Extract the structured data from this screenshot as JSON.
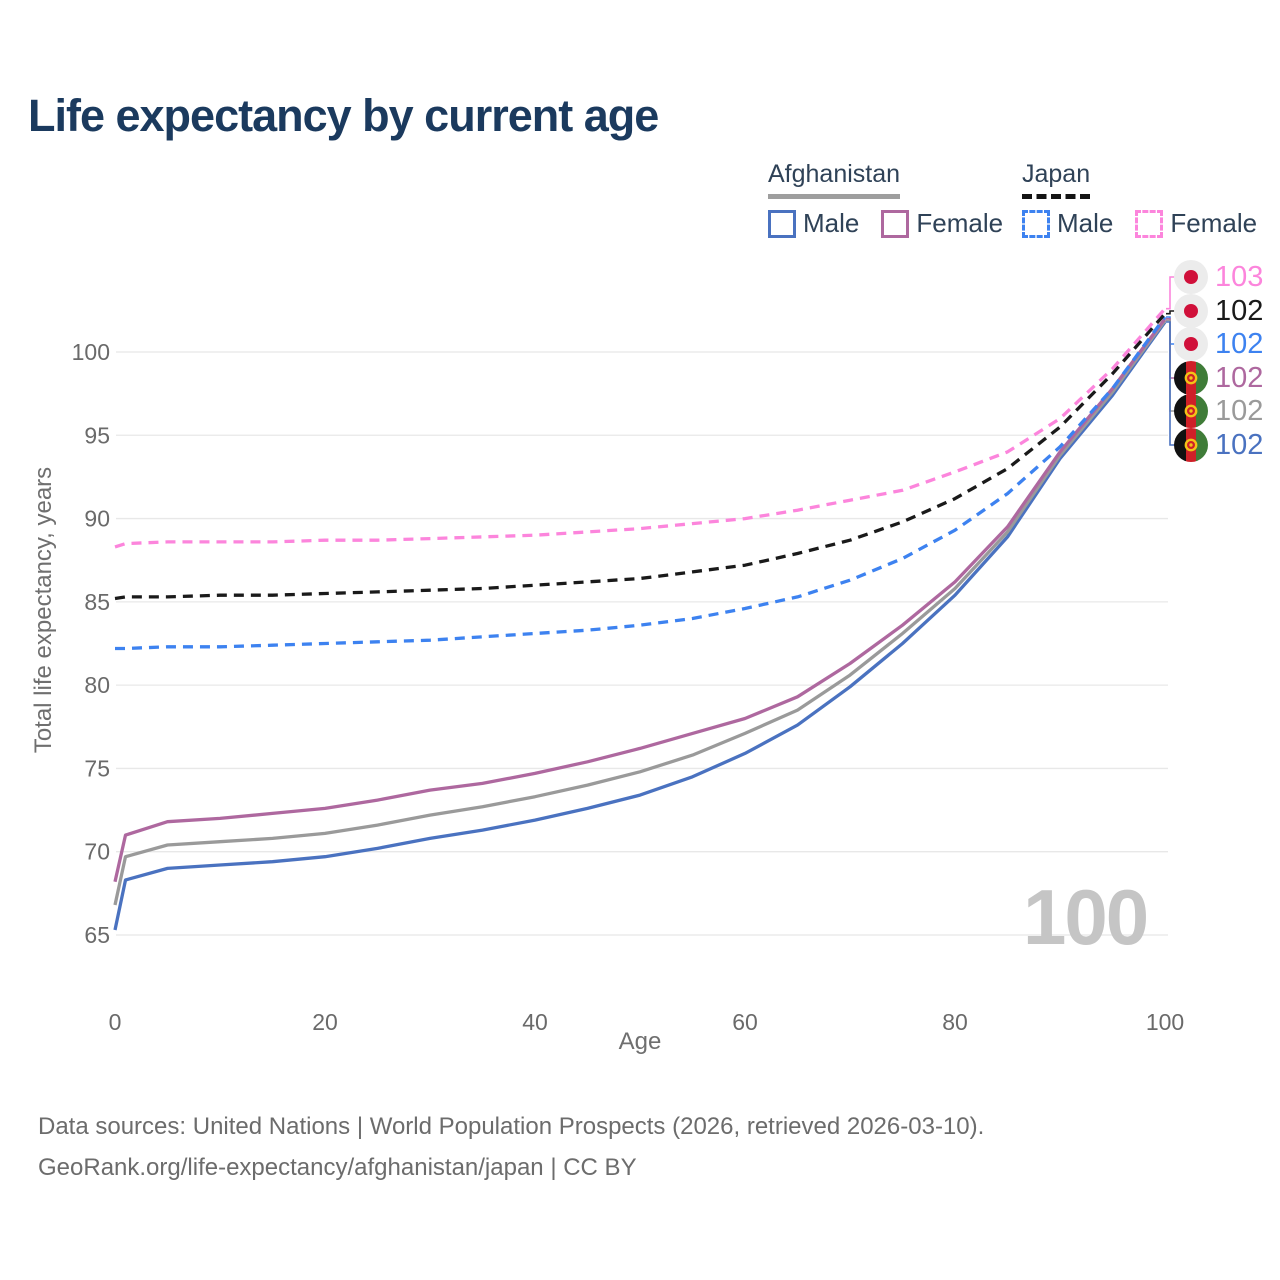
{
  "title": "Life expectancy by current age",
  "age_counter": "100",
  "colors": {
    "title": "#1b3a5e",
    "legend_text": "#2f4257",
    "axis_text": "#6a6a6a",
    "grid": "#e8e8e8",
    "watermark": "#c5c5c5",
    "footer_text": "#6c6c6c",
    "afghanistan_underline": "#9e9e9e",
    "japan_underline": "#141414"
  },
  "legend": {
    "groups": [
      {
        "country": "Afghanistan",
        "line_style": "solid",
        "underline_color": "#9e9e9e",
        "items": [
          {
            "label": "Male",
            "color": "#4a72c0",
            "dashed": false
          },
          {
            "label": "Female",
            "color": "#ae689f",
            "dashed": false
          }
        ]
      },
      {
        "country": "Japan",
        "line_style": "dashed",
        "underline_color": "#141414",
        "items": [
          {
            "label": "Male",
            "color": "#3d82f0",
            "dashed": true
          },
          {
            "label": "Female",
            "color": "#fc85dc",
            "dashed": true
          }
        ]
      }
    ]
  },
  "chart_data": {
    "type": "line",
    "title": "Life expectancy by current age",
    "xlabel": "Age",
    "ylabel": "Total life expectancy, years",
    "x_ticks": [
      0,
      20,
      40,
      60,
      80,
      100
    ],
    "y_ticks": [
      65,
      70,
      75,
      80,
      85,
      90,
      95,
      100
    ],
    "xlim": [
      0,
      100
    ],
    "ylim": [
      64,
      103.5
    ],
    "grid": "horizontal",
    "legend_position": "top-right",
    "x": [
      0,
      1,
      5,
      10,
      15,
      20,
      25,
      30,
      35,
      40,
      45,
      50,
      55,
      60,
      65,
      70,
      75,
      80,
      85,
      90,
      95,
      100
    ],
    "series": [
      {
        "name": "Japan Female",
        "country": "Japan",
        "sex": "Female",
        "color": "#fc85dc",
        "dashed": true,
        "end_label": "103",
        "values": [
          88.3,
          88.5,
          88.6,
          88.6,
          88.6,
          88.7,
          88.7,
          88.8,
          88.9,
          89.0,
          89.2,
          89.4,
          89.7,
          90.0,
          90.5,
          91.1,
          91.7,
          92.8,
          94.0,
          96.0,
          99.0,
          102.6
        ]
      },
      {
        "name": "Japan",
        "country": "Japan",
        "sex": "Both",
        "color": "#1a1a1a",
        "dashed": true,
        "end_label": "102",
        "values": [
          85.2,
          85.3,
          85.3,
          85.4,
          85.4,
          85.5,
          85.6,
          85.7,
          85.8,
          86.0,
          86.2,
          86.4,
          86.8,
          87.2,
          87.9,
          88.7,
          89.8,
          91.2,
          93.0,
          95.5,
          98.7,
          102.3
        ]
      },
      {
        "name": "Japan Male",
        "country": "Japan",
        "sex": "Male",
        "color": "#3d82f0",
        "dashed": true,
        "end_label": "102",
        "values": [
          82.2,
          82.2,
          82.3,
          82.3,
          82.4,
          82.5,
          82.6,
          82.7,
          82.9,
          83.1,
          83.3,
          83.6,
          84.0,
          84.6,
          85.3,
          86.3,
          87.6,
          89.3,
          91.5,
          94.3,
          97.8,
          102.1
        ]
      },
      {
        "name": "Afghanistan Female",
        "country": "Afghanistan",
        "sex": "Female",
        "color": "#ae689f",
        "dashed": false,
        "end_label": "102",
        "values": [
          68.2,
          71.0,
          71.8,
          72.0,
          72.3,
          72.6,
          73.1,
          73.7,
          74.1,
          74.7,
          75.4,
          76.2,
          77.1,
          78.0,
          79.3,
          81.3,
          83.6,
          86.2,
          89.5,
          94.0,
          97.8,
          102.0
        ]
      },
      {
        "name": "Afghanistan",
        "country": "Afghanistan",
        "sex": "Both",
        "color": "#9a9a9a",
        "dashed": false,
        "end_label": "102",
        "values": [
          66.8,
          69.7,
          70.4,
          70.6,
          70.8,
          71.1,
          71.6,
          72.2,
          72.7,
          73.3,
          74.0,
          74.8,
          75.8,
          77.1,
          78.5,
          80.6,
          83.1,
          85.8,
          89.2,
          93.8,
          97.6,
          101.9
        ]
      },
      {
        "name": "Afghanistan Male",
        "country": "Afghanistan",
        "sex": "Male",
        "color": "#4a72c0",
        "dashed": false,
        "end_label": "102",
        "values": [
          65.3,
          68.3,
          69.0,
          69.2,
          69.4,
          69.7,
          70.2,
          70.8,
          71.3,
          71.9,
          72.6,
          73.4,
          74.5,
          75.9,
          77.6,
          79.9,
          82.5,
          85.4,
          88.9,
          93.6,
          97.4,
          101.8
        ]
      }
    ]
  },
  "footer": {
    "line1": "Data sources: United Nations | World Population Prospects (2026, retrieved 2026-03-10).",
    "line2": "GeoRank.org/life-expectancy/afghanistan/japan | CC BY"
  }
}
